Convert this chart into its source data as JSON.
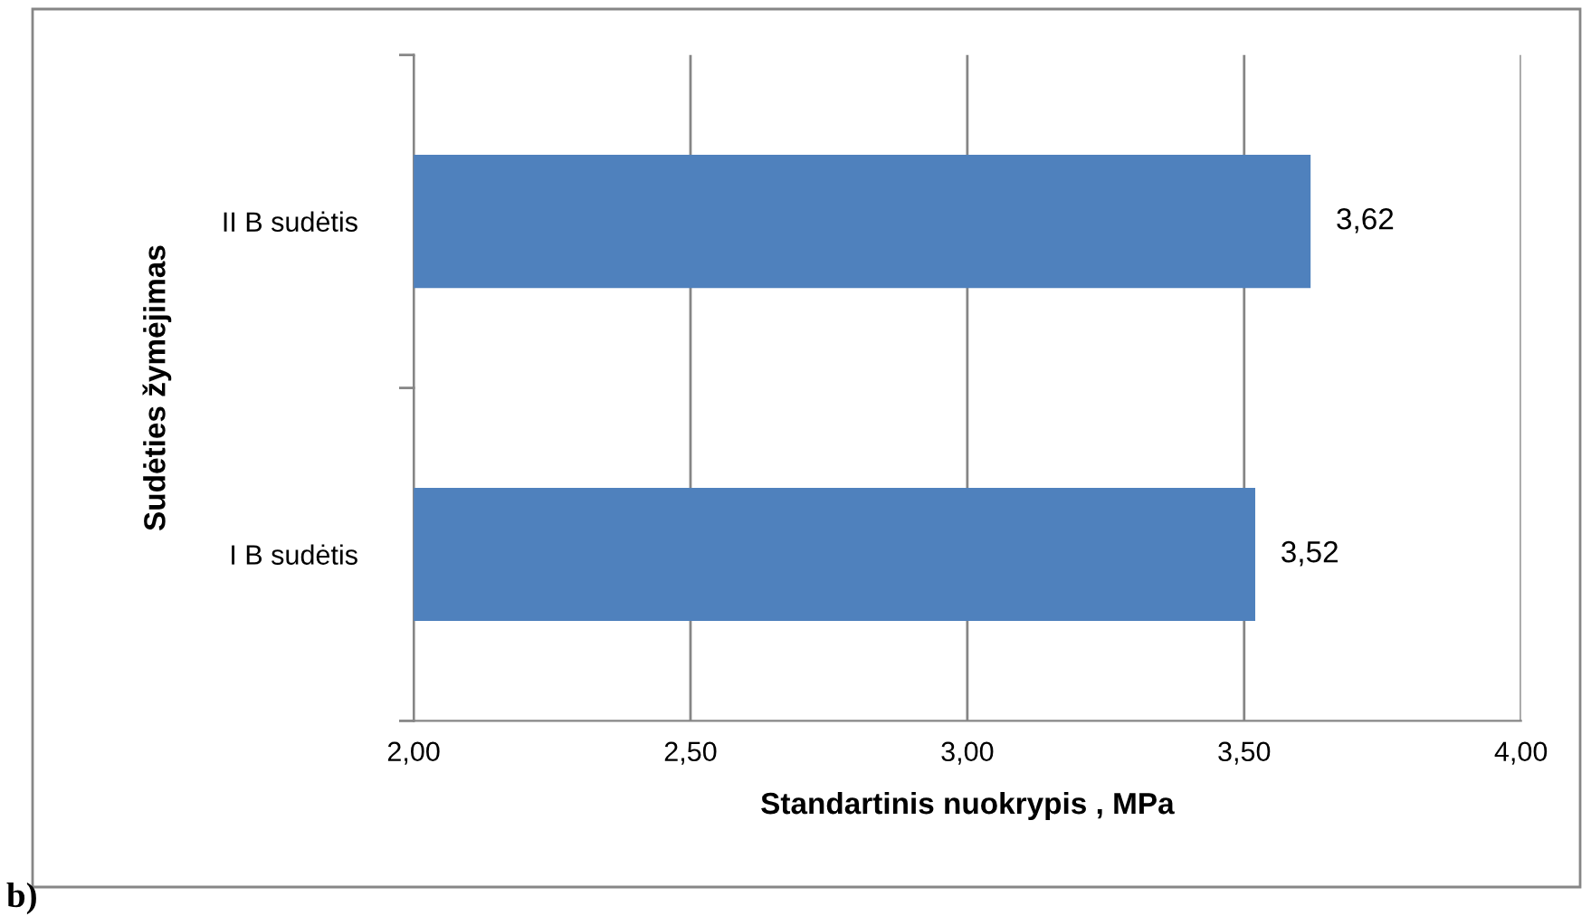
{
  "chart_data": {
    "type": "bar",
    "orientation": "horizontal",
    "categories": [
      "II B sudėtis",
      "I B sudėtis"
    ],
    "values": [
      3.62,
      3.52
    ],
    "value_labels": [
      "3,62",
      "3,52"
    ],
    "color": "#4f81bd",
    "xlim": [
      2.0,
      4.0
    ],
    "xticks": [
      {
        "value": 2.0,
        "label": "2,00"
      },
      {
        "value": 2.5,
        "label": "2,50"
      },
      {
        "value": 3.0,
        "label": "3,00"
      },
      {
        "value": 3.5,
        "label": "3,50"
      },
      {
        "value": 4.0,
        "label": "4,00"
      }
    ],
    "grid": "x",
    "xlabel": "Standartinis nuokrypis , MPa",
    "ylabel": "Sudėties žymėjimas",
    "annotations": [
      "b)"
    ]
  }
}
